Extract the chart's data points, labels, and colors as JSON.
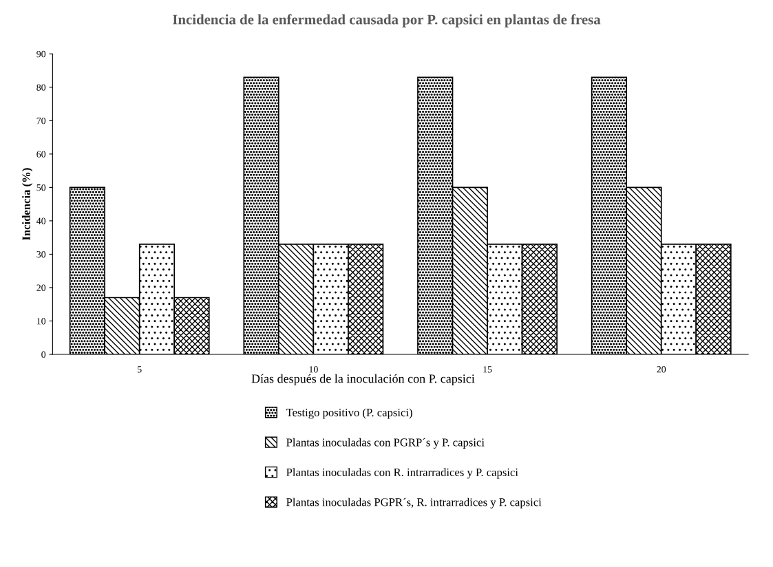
{
  "chart_data": {
    "type": "bar",
    "title": "Incidencia de la enfermedad causada por P. capsici en plantas de fresa",
    "xlabel": "Días después de la inoculación con P. capsici",
    "ylabel": "Incidencia (%)",
    "categories": [
      "5",
      "10",
      "15",
      "20"
    ],
    "series": [
      {
        "name": "Testigo positivo (P. capsici)",
        "color": "#000000",
        "values": [
          50,
          83,
          83,
          83
        ]
      },
      {
        "name": "Plantas inoculadas con PGRP´s y P. capsici",
        "color": "#000000",
        "values": [
          17,
          33,
          50,
          50
        ]
      },
      {
        "name": "Plantas inoculadas con R. intrarradices y P. capsici",
        "color": "#000000",
        "values": [
          33,
          33,
          33,
          33
        ]
      },
      {
        "name": "Plantas inoculadas PGPR´s, R. intrarradices y P. capsici",
        "color": "#000000",
        "values": [
          17,
          33,
          33,
          33
        ]
      }
    ],
    "ylim": [
      0,
      90
    ],
    "yticks": [
      0,
      10,
      20,
      30,
      40,
      50,
      60,
      70,
      80,
      90
    ],
    "grid": false,
    "legend": "bottom"
  }
}
